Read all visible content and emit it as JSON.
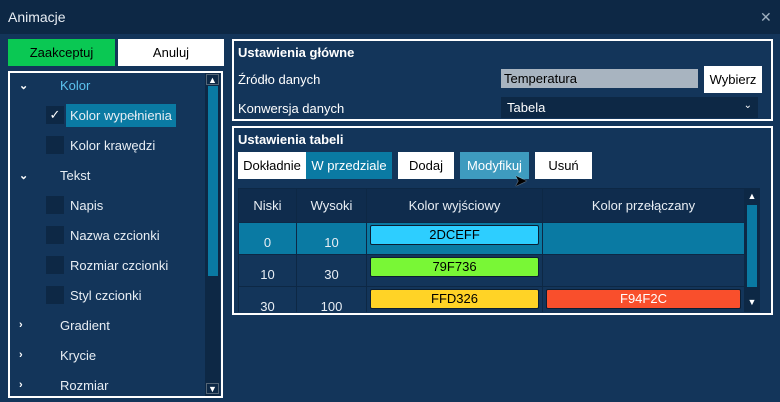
{
  "window": {
    "title": "Animacje",
    "close_icon": "close-icon"
  },
  "actions": {
    "accept": "Zaakceptuj",
    "cancel": "Anuluj",
    "accept_color": "#0ac853"
  },
  "tree": [
    {
      "label": "Kolor",
      "type": "group",
      "expanded": true,
      "highlight": true
    },
    {
      "label": "Kolor wypełnienia",
      "type": "check",
      "checked": true,
      "selected": true
    },
    {
      "label": "Kolor krawędzi",
      "type": "check",
      "checked": false
    },
    {
      "label": "Tekst",
      "type": "group",
      "expanded": true
    },
    {
      "label": "Napis",
      "type": "check",
      "checked": false
    },
    {
      "label": "Nazwa czcionki",
      "type": "check",
      "checked": false
    },
    {
      "label": "Rozmiar czcionki",
      "type": "check",
      "checked": false
    },
    {
      "label": "Styl czcionki",
      "type": "check",
      "checked": false
    },
    {
      "label": "Gradient",
      "type": "group",
      "expanded": false
    },
    {
      "label": "Krycie",
      "type": "group",
      "expanded": false
    },
    {
      "label": "Rozmiar",
      "type": "group",
      "expanded": false
    }
  ],
  "main": {
    "heading": "Ustawienia główne",
    "source_label": "Źródło danych",
    "source_value": "Temperatura",
    "choose": "Wybierz",
    "conversion_label": "Konwersja danych",
    "conversion_value": "Tabela"
  },
  "table_settings": {
    "heading": "Ustawienia tabeli",
    "mode_exact": "Dokładnie",
    "mode_range": "W przedziale",
    "add": "Dodaj",
    "modify": "Modyfikuj",
    "remove": "Usuń",
    "columns": [
      "Niski",
      "Wysoki",
      "Kolor wyjściowy",
      "Kolor przełączany"
    ],
    "rows": [
      {
        "low": "0",
        "high": "10",
        "out": "2DCEFF",
        "out_color": "#2dceff",
        "sw": "",
        "sw_color": "",
        "selected": true
      },
      {
        "low": "10",
        "high": "30",
        "out": "79F736",
        "out_color": "#79f736",
        "sw": "",
        "sw_color": ""
      },
      {
        "low": "30",
        "high": "100",
        "out": "FFD326",
        "out_color": "#ffd326",
        "sw": "F94F2C",
        "sw_color": "#f94f2c"
      }
    ]
  }
}
